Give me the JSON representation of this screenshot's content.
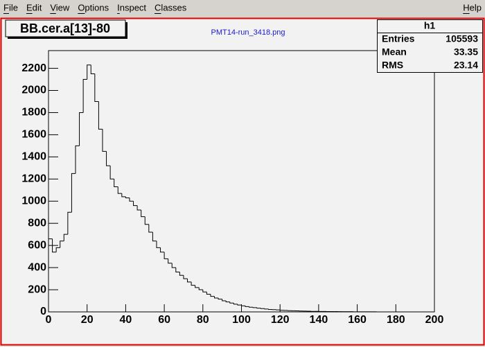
{
  "menu": [
    "File",
    "Edit",
    "View",
    "Options",
    "Inspect",
    "Classes"
  ],
  "help": "Help",
  "chart_data": {
    "type": "histogram",
    "title": "BB.cer.a[13]-80",
    "subtitle": "PMT14-run_3418.png",
    "stats": {
      "title": "h1",
      "rows": [
        [
          "Entries",
          "105593"
        ],
        [
          "Mean",
          "33.35"
        ],
        [
          "RMS",
          "23.14"
        ]
      ]
    },
    "bins": [
      0,
      2,
      4,
      6,
      8,
      10,
      12,
      14,
      16,
      18,
      20,
      22,
      24,
      26,
      28,
      30,
      32,
      34,
      36,
      38,
      40,
      42,
      44,
      46,
      48,
      50,
      52,
      54,
      56,
      58,
      60,
      62,
      64,
      66,
      68,
      70,
      72,
      74,
      76,
      78,
      80,
      82,
      84,
      86,
      88,
      90,
      92,
      94,
      96,
      98,
      100,
      102,
      104,
      106,
      108,
      110,
      112,
      114,
      116,
      118,
      120,
      122,
      124,
      126,
      128,
      130,
      132,
      134,
      136,
      138,
      140,
      142,
      144,
      146,
      148,
      150,
      152,
      154,
      156,
      158,
      160,
      162,
      164,
      166,
      168,
      170,
      172,
      174,
      176,
      178,
      180,
      182,
      184,
      186,
      188,
      190,
      192,
      194,
      196,
      198,
      200
    ],
    "values": [
      660,
      540,
      580,
      640,
      700,
      900,
      1250,
      1500,
      1800,
      2100,
      2230,
      2150,
      1900,
      1650,
      1450,
      1320,
      1200,
      1130,
      1070,
      1040,
      1030,
      1000,
      960,
      920,
      860,
      790,
      720,
      640,
      580,
      540,
      480,
      440,
      400,
      360,
      330,
      300,
      270,
      240,
      220,
      200,
      180,
      160,
      140,
      125,
      115,
      100,
      90,
      80,
      70,
      62,
      55,
      48,
      42,
      38,
      34,
      30,
      26,
      22,
      20,
      18,
      15,
      13,
      11,
      10,
      9,
      8,
      7,
      6,
      5,
      5,
      4,
      4,
      3,
      3,
      3,
      2,
      2,
      2,
      2,
      1,
      1,
      1,
      1,
      1,
      1,
      0,
      0,
      0,
      0,
      0,
      0,
      0,
      0,
      0,
      0,
      0,
      0,
      0,
      0,
      0
    ],
    "color": "#000000",
    "xlim": [
      0,
      200
    ],
    "xticks": [
      0,
      20,
      40,
      60,
      80,
      100,
      120,
      140,
      160,
      180,
      200
    ],
    "ylim": [
      0,
      2360
    ],
    "yticks": [
      0,
      200,
      400,
      600,
      800,
      1000,
      1200,
      1400,
      1600,
      1800,
      2000,
      2200
    ]
  }
}
